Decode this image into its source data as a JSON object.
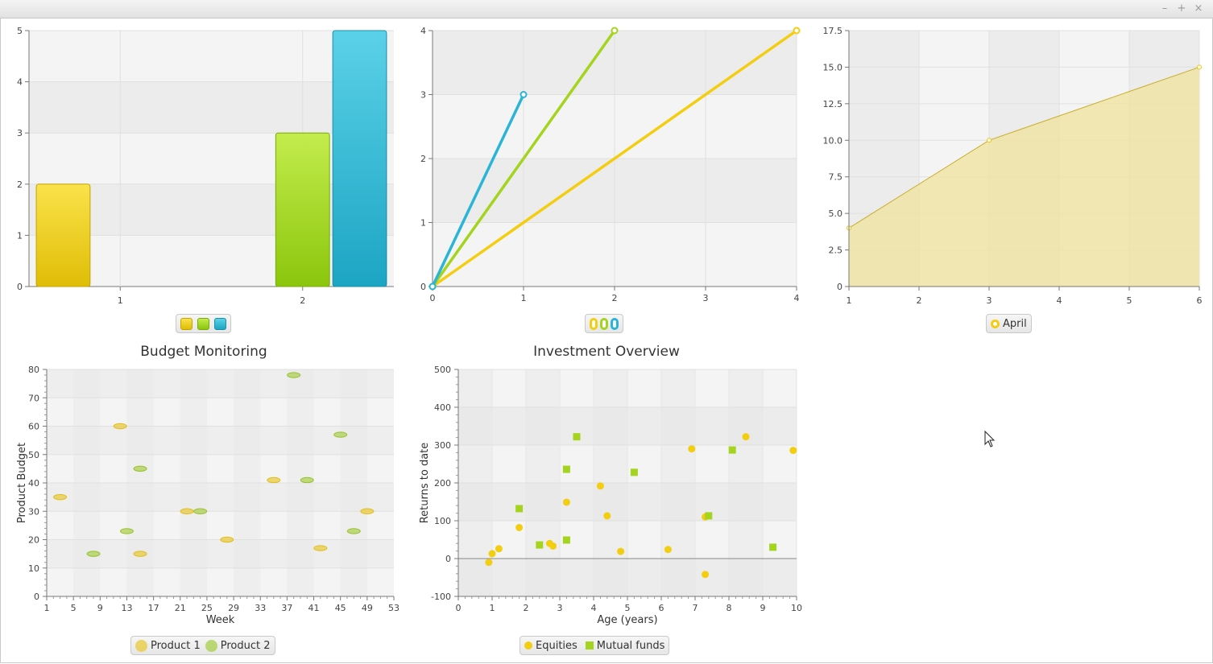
{
  "window": {
    "controls": [
      "–",
      "+",
      "×"
    ]
  },
  "colors": {
    "yellow": "#f3cd10",
    "green": "#a4d41e",
    "blue": "#2ab5d6",
    "area_fill": "#f0e39c",
    "area_line": "#c9ad2a"
  },
  "charts": {
    "bar": {
      "legend": [
        {
          "color_top": "#fbe24a",
          "color_bottom": "#dfbd06"
        },
        {
          "color_top": "#c3ec4c",
          "color_bottom": "#8bc60d"
        },
        {
          "color_top": "#5bd1e8",
          "color_bottom": "#1ca5c3"
        }
      ]
    },
    "line": {
      "legend": [
        {
          "color": "#f3cd10"
        },
        {
          "color": "#a4d41e"
        },
        {
          "color": "#2ab5d6"
        }
      ]
    },
    "area": {
      "legend": [
        {
          "label": "April",
          "color": "#f3cd10"
        }
      ]
    },
    "bubble": {
      "title": "Budget Monitoring",
      "legend": [
        {
          "label": "Product 1",
          "color": "#e8c93a"
        },
        {
          "label": "Product 2",
          "color": "#a9cf4a"
        }
      ]
    },
    "scatter": {
      "title": "Investment Overview",
      "legend": [
        {
          "label": "Equities",
          "color": "#f3cd10"
        },
        {
          "label": "Mutual funds",
          "color": "#a4d41e"
        }
      ]
    }
  },
  "chart_data": [
    {
      "id": "bar",
      "type": "bar",
      "categories": [
        "1",
        "2"
      ],
      "series": [
        {
          "values": [
            2,
            null
          ]
        },
        {
          "values": [
            null,
            3
          ]
        },
        {
          "values": [
            null,
            5
          ]
        }
      ],
      "ylim": [
        0,
        5
      ],
      "yticks": [
        "0",
        "1",
        "2",
        "3",
        "4",
        "5"
      ],
      "grid": true
    },
    {
      "id": "line",
      "type": "line",
      "series": [
        {
          "points": [
            [
              0,
              0
            ],
            [
              4,
              4
            ]
          ]
        },
        {
          "points": [
            [
              0,
              0
            ],
            [
              2,
              4
            ]
          ]
        },
        {
          "points": [
            [
              0,
              0
            ],
            [
              1,
              3
            ]
          ]
        }
      ],
      "xlim": [
        0,
        4
      ],
      "ylim": [
        0,
        4
      ],
      "xticks": [
        "0",
        "1",
        "2",
        "3",
        "4"
      ],
      "yticks": [
        "0",
        "1",
        "2",
        "3",
        "4"
      ],
      "grid": true
    },
    {
      "id": "area",
      "type": "area",
      "series": [
        {
          "name": "April",
          "points": [
            [
              1,
              4
            ],
            [
              3,
              10
            ],
            [
              6,
              15
            ]
          ]
        }
      ],
      "xlim": [
        1,
        6
      ],
      "ylim": [
        0,
        17.5
      ],
      "xticks": [
        "1",
        "2",
        "3",
        "4",
        "5",
        "6"
      ],
      "yticks": [
        "0",
        "2.5",
        "5.0",
        "7.5",
        "10.0",
        "12.5",
        "15.0",
        "17.5"
      ],
      "grid": true
    },
    {
      "id": "bubble",
      "type": "scatter",
      "title": "Budget Monitoring",
      "xlabel": "Week",
      "ylabel": "Product Budget",
      "xlim": [
        1,
        53
      ],
      "ylim": [
        0,
        80
      ],
      "xticks": [
        "1",
        "5",
        "9",
        "13",
        "17",
        "21",
        "25",
        "29",
        "33",
        "37",
        "41",
        "45",
        "49",
        "53"
      ],
      "yticks": [
        "0",
        "10",
        "20",
        "30",
        "40",
        "50",
        "60",
        "70",
        "80"
      ],
      "series": [
        {
          "name": "Product 1",
          "points": [
            [
              3,
              35
            ],
            [
              12,
              60
            ],
            [
              15,
              15
            ],
            [
              22,
              30
            ],
            [
              28,
              20
            ],
            [
              35,
              41
            ],
            [
              42,
              17
            ],
            [
              49,
              30
            ]
          ]
        },
        {
          "name": "Product 2",
          "points": [
            [
              8,
              15
            ],
            [
              13,
              23
            ],
            [
              15,
              45
            ],
            [
              24,
              30
            ],
            [
              38,
              78
            ],
            [
              40,
              41
            ],
            [
              45,
              57
            ],
            [
              47,
              23
            ]
          ]
        }
      ],
      "grid": true
    },
    {
      "id": "scatter",
      "type": "scatter",
      "title": "Investment Overview",
      "xlabel": "Age (years)",
      "ylabel": "Returns to date",
      "xlim": [
        0,
        10
      ],
      "ylim": [
        -100,
        500
      ],
      "xticks": [
        "0",
        "1",
        "2",
        "3",
        "4",
        "5",
        "6",
        "7",
        "8",
        "9",
        "10"
      ],
      "yticks": [
        "-100",
        "0",
        "100",
        "200",
        "300",
        "400",
        "500"
      ],
      "series": [
        {
          "name": "Equities",
          "points": [
            [
              0.9,
              -10
            ],
            [
              1.0,
              13
            ],
            [
              1.2,
              26
            ],
            [
              1.8,
              82
            ],
            [
              2.7,
              40
            ],
            [
              2.8,
              33
            ],
            [
              3.2,
              149
            ],
            [
              4.2,
              192
            ],
            [
              4.4,
              113
            ],
            [
              4.8,
              19
            ],
            [
              6.2,
              24
            ],
            [
              6.9,
              290
            ],
            [
              7.3,
              -42
            ],
            [
              7.3,
              110
            ],
            [
              8.5,
              322
            ],
            [
              9.9,
              286
            ]
          ]
        },
        {
          "name": "Mutual funds",
          "points": [
            [
              1.8,
              132
            ],
            [
              2.4,
              36
            ],
            [
              3.2,
              236
            ],
            [
              3.2,
              49
            ],
            [
              3.5,
              322
            ],
            [
              5.2,
              228
            ],
            [
              7.4,
              113
            ],
            [
              8.1,
              287
            ],
            [
              9.3,
              30
            ]
          ]
        }
      ],
      "grid": true
    }
  ]
}
